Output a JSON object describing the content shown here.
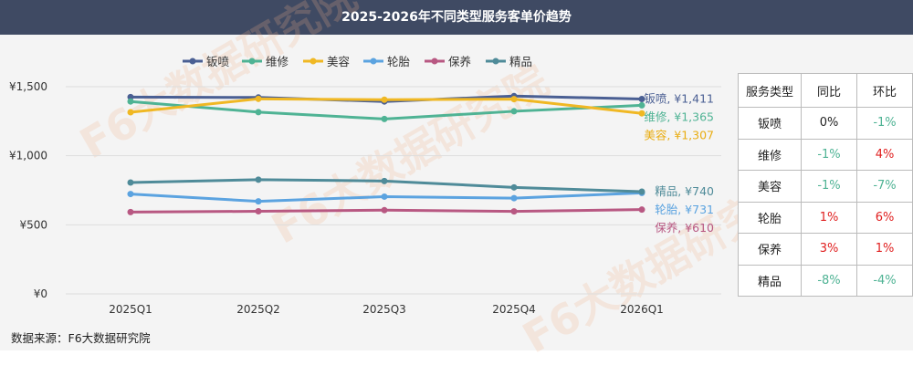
{
  "title": "2025-2026年不同类型服务客单价趋势",
  "source": "数据来源：F6大数据研究院",
  "chart_data": {
    "type": "line",
    "categories": [
      "2025Q1",
      "2025Q2",
      "2025Q3",
      "2025Q4",
      "2026Q1"
    ],
    "ylim": [
      0,
      1500
    ],
    "yticks": [
      0,
      500,
      1000,
      1500
    ],
    "ytick_labels": [
      "¥0",
      "¥500",
      "¥1,000",
      "¥1,500"
    ],
    "grid": true,
    "legend_position": "top",
    "series": [
      {
        "name": "钣喷",
        "color": "#4a5f93",
        "values": [
          1425,
          1422,
          1393,
          1432,
          1411
        ],
        "end_label": "钣喷, ¥1,411",
        "label_color": "#4a5f93"
      },
      {
        "name": "维修",
        "color": "#4fb394",
        "values": [
          1393,
          1316,
          1266,
          1322,
          1365
        ],
        "end_label": "维修, ¥1,365",
        "label_color": "#4fb394"
      },
      {
        "name": "美容",
        "color": "#f0b824",
        "values": [
          1315,
          1412,
          1406,
          1410,
          1307
        ],
        "end_label": "美容, ¥1,307",
        "label_color": "#e9ad12"
      },
      {
        "name": "轮胎",
        "color": "#5ba3e0",
        "values": [
          723,
          670,
          704,
          693,
          731
        ],
        "end_label": "轮胎, ¥731",
        "label_color": "#5ba3e0"
      },
      {
        "name": "保养",
        "color": "#b85882",
        "values": [
          592,
          598,
          606,
          597,
          610
        ],
        "end_label": "保养, ¥610",
        "label_color": "#b85882"
      },
      {
        "name": "精品",
        "color": "#4f8b99",
        "values": [
          806,
          827,
          817,
          771,
          740
        ],
        "end_label": "精品, ¥740",
        "label_color": "#4f8b99"
      }
    ]
  },
  "table": {
    "headers": [
      "服务类型",
      "同比",
      "环比"
    ],
    "rows": [
      {
        "type": "钣喷",
        "yoy": "0%",
        "yoy_color": "#222222",
        "qoq": "-1%",
        "qoq_color": "#4fb394"
      },
      {
        "type": "维修",
        "yoy": "-1%",
        "yoy_color": "#4fb394",
        "qoq": "4%",
        "qoq_color": "#e02020"
      },
      {
        "type": "美容",
        "yoy": "-1%",
        "yoy_color": "#4fb394",
        "qoq": "-7%",
        "qoq_color": "#4fb394"
      },
      {
        "type": "轮胎",
        "yoy": "1%",
        "yoy_color": "#e02020",
        "qoq": "6%",
        "qoq_color": "#e02020"
      },
      {
        "type": "保养",
        "yoy": "3%",
        "yoy_color": "#e02020",
        "qoq": "1%",
        "qoq_color": "#e02020"
      },
      {
        "type": "精品",
        "yoy": "-8%",
        "yoy_color": "#4fb394",
        "qoq": "-4%",
        "qoq_color": "#4fb394"
      }
    ]
  },
  "watermark": "F6大数据研究院"
}
